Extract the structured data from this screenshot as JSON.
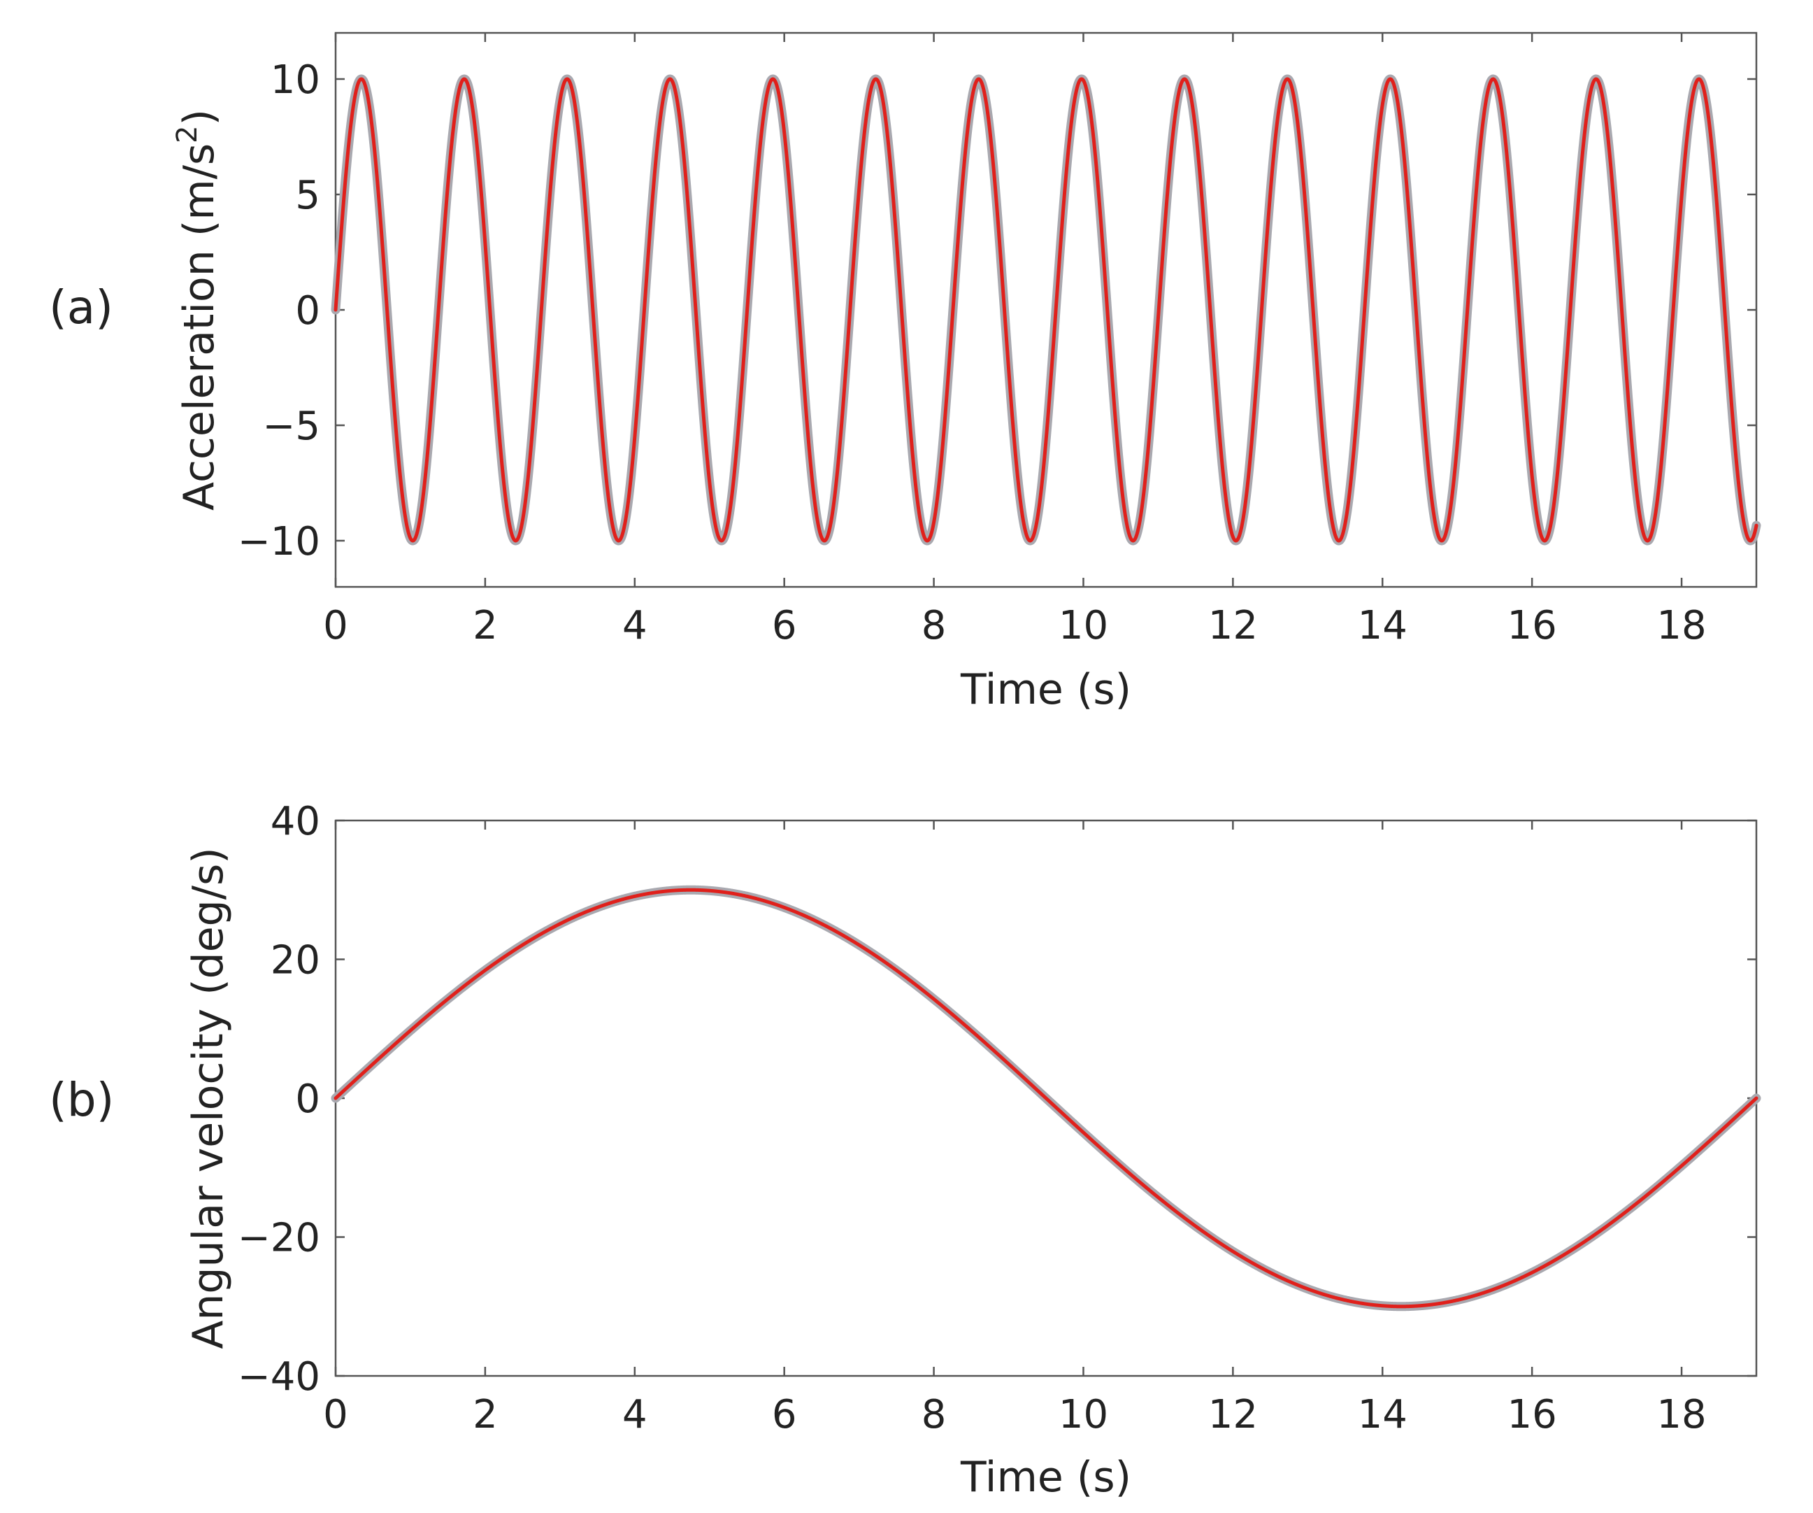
{
  "chart_data": [
    {
      "type": "line",
      "panel_label": "(a)",
      "xlabel": "Time (s)",
      "ylabel": "Acceleration (m/s",
      "ylabel_sup": "2",
      "ylabel_end": ")",
      "xlim": [
        0,
        19
      ],
      "ylim": [
        -12,
        12
      ],
      "xticks": [
        0,
        2,
        4,
        6,
        8,
        10,
        12,
        14,
        16,
        18
      ],
      "yticks": [
        -10,
        -5,
        0,
        5,
        10
      ],
      "xtick_labels": [
        "0",
        "2",
        "4",
        "6",
        "8",
        "10",
        "12",
        "14",
        "16",
        "18"
      ],
      "ytick_labels": [
        "−10",
        "−5",
        "0",
        "5",
        "10"
      ],
      "series": [
        {
          "color": "#a9a9b0",
          "function": "10*sin(2*pi*t/1.376)",
          "t_range": [
            0,
            19
          ]
        },
        {
          "color": "#e0201b",
          "function": "10*sin(2*pi*t/1.376)",
          "t_range": [
            0,
            19
          ]
        }
      ],
      "amplitude": 10,
      "period": 1.376
    },
    {
      "type": "line",
      "panel_label": "(b)",
      "xlabel": "Time (s)",
      "ylabel": "Angular velocity (deg/s)",
      "xlim": [
        0,
        19
      ],
      "ylim": [
        -40,
        40
      ],
      "xticks": [
        0,
        2,
        4,
        6,
        8,
        10,
        12,
        14,
        16,
        18
      ],
      "yticks": [
        -40,
        -20,
        0,
        20,
        40
      ],
      "xtick_labels": [
        "0",
        "2",
        "4",
        "6",
        "8",
        "10",
        "12",
        "14",
        "16",
        "18"
      ],
      "ytick_labels": [
        "−40",
        "−20",
        "0",
        "20",
        "40"
      ],
      "series": [
        {
          "color": "#a9a9b0",
          "function": "30*sin(2*pi*t/19)",
          "t_range": [
            0,
            19
          ]
        },
        {
          "color": "#e0201b",
          "function": "30*sin(2*pi*t/19)",
          "t_range": [
            0,
            19
          ]
        }
      ],
      "amplitude": 30,
      "period": 19
    }
  ]
}
